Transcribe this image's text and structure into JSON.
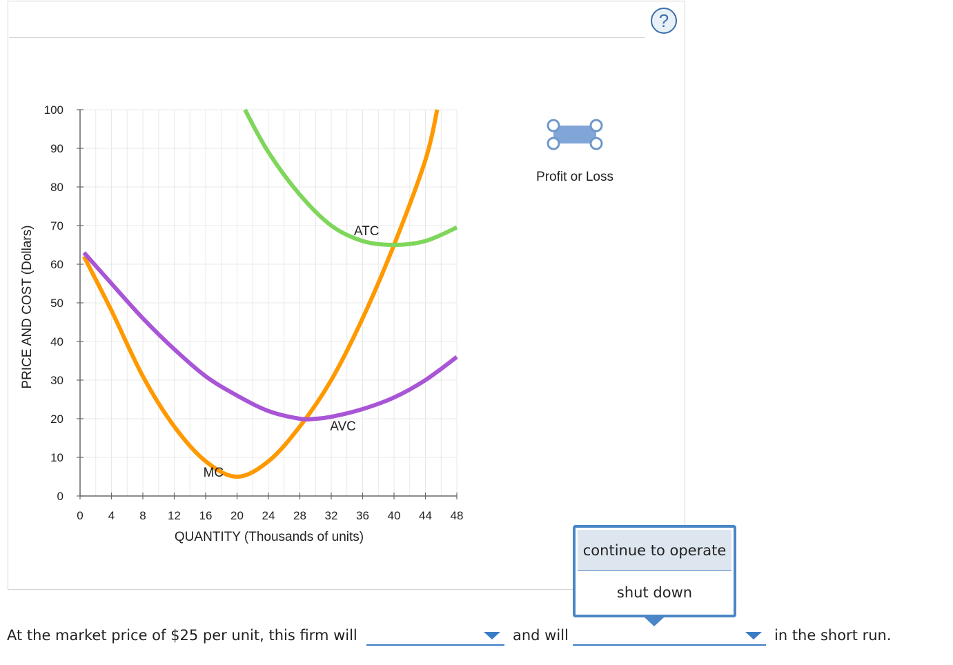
{
  "help": {
    "symbol": "?"
  },
  "chart_data": {
    "type": "line",
    "xlabel": "QUANTITY (Thousands of units)",
    "ylabel": "PRICE AND COST (Dollars)",
    "xlim": [
      0,
      48
    ],
    "ylim": [
      0,
      100
    ],
    "x_ticks": [
      0,
      4,
      8,
      12,
      16,
      20,
      24,
      28,
      32,
      36,
      40,
      44,
      48
    ],
    "y_ticks": [
      0,
      10,
      20,
      30,
      40,
      50,
      60,
      70,
      80,
      90,
      100
    ],
    "grid": true,
    "series": [
      {
        "name": "MC",
        "color": "#ff9900",
        "points": [
          [
            0.5,
            62
          ],
          [
            4,
            48
          ],
          [
            8,
            31
          ],
          [
            12,
            18
          ],
          [
            16,
            9
          ],
          [
            20,
            5
          ],
          [
            24,
            9
          ],
          [
            28,
            18
          ],
          [
            32,
            30
          ],
          [
            36,
            46
          ],
          [
            40,
            65
          ],
          [
            44,
            87
          ],
          [
            45.5,
            100
          ]
        ]
      },
      {
        "name": "AVC",
        "color": "#a855d6",
        "points": [
          [
            0.5,
            63
          ],
          [
            4,
            55
          ],
          [
            8,
            46
          ],
          [
            12,
            38
          ],
          [
            16,
            31
          ],
          [
            20,
            26
          ],
          [
            24,
            22
          ],
          [
            28,
            20
          ],
          [
            30,
            20
          ],
          [
            32,
            20.5
          ],
          [
            36,
            22.5
          ],
          [
            40,
            25.5
          ],
          [
            44,
            30
          ],
          [
            48,
            36
          ]
        ]
      },
      {
        "name": "ATC",
        "color": "#7ed65a",
        "points": [
          [
            21,
            100
          ],
          [
            24,
            89
          ],
          [
            28,
            78
          ],
          [
            32,
            70
          ],
          [
            36,
            66
          ],
          [
            40,
            65
          ],
          [
            44,
            66
          ],
          [
            48,
            69.5
          ]
        ]
      }
    ],
    "labels": [
      {
        "text": "MC",
        "x": 17,
        "y": 5
      },
      {
        "text": "AVC",
        "x": 33.5,
        "y": 17
      },
      {
        "text": "ATC",
        "x": 36.5,
        "y": 67.5
      }
    ]
  },
  "legend": {
    "profit_label": "Profit or Loss",
    "profit_icon": "rectangle-tool-icon",
    "profit_color": "#7fa6d6"
  },
  "question": {
    "part1": "At the market price of $25 per unit, this firm will",
    "part2": "and will",
    "part3": "in the short run.",
    "dropdown1_value": "",
    "dropdown2_value": ""
  },
  "popup": {
    "options": [
      "continue to operate",
      "shut down"
    ],
    "highlighted": 0
  }
}
